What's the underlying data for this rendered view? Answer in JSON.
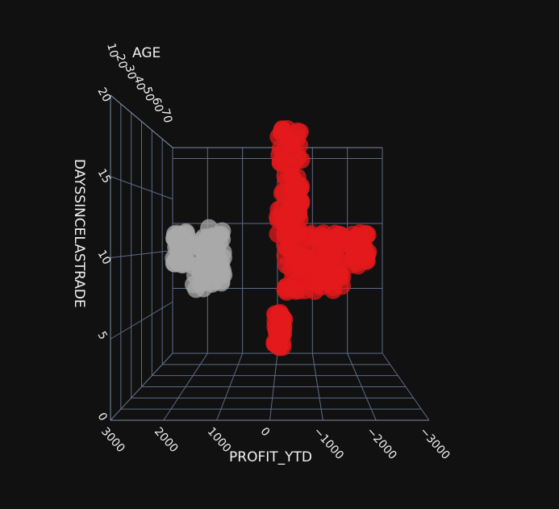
{
  "chart_data": {
    "type": "scatter",
    "title": "",
    "axes": {
      "x": {
        "label": "PROFIT_YTD",
        "ticks": [
          "3000",
          "2000",
          "1000",
          "0",
          "−1000",
          "−2000",
          "−3000"
        ],
        "range": [
          3000,
          -3000
        ]
      },
      "y": {
        "label": "AGE",
        "ticks": [
          "10",
          "20",
          "30",
          "40",
          "50",
          "60",
          "70"
        ],
        "range": [
          10,
          70
        ]
      },
      "z": {
        "label": "DAYSSINCELASTRADE",
        "ticks": [
          "0",
          "5",
          "10",
          "15",
          "20"
        ],
        "range": [
          0,
          20
        ]
      }
    },
    "grid": true,
    "background": "#111111",
    "series": [
      {
        "color": "#a9a9a9",
        "clusters": [
          {
            "profit_range": [
              1500,
              2400
            ],
            "days_range": [
              5.5,
              10.8
            ]
          },
          {
            "profit_range": [
              2600,
              3000
            ],
            "days_range": [
              7.5,
              10.5
            ]
          }
        ]
      },
      {
        "color": "#e31a1c",
        "clusters": [
          {
            "profit_range": [
              -700,
              0
            ],
            "days_range": [
              10.2,
              19.5
            ]
          },
          {
            "profit_range": [
              -1900,
              -200
            ],
            "days_range": [
              5.2,
              10.5
            ]
          },
          {
            "profit_range": [
              -2600,
              -2100
            ],
            "days_range": [
              7.5,
              10.5
            ]
          },
          {
            "profit_range": [
              -200,
              100
            ],
            "days_range": [
              0.5,
              3.5
            ]
          }
        ]
      }
    ]
  }
}
